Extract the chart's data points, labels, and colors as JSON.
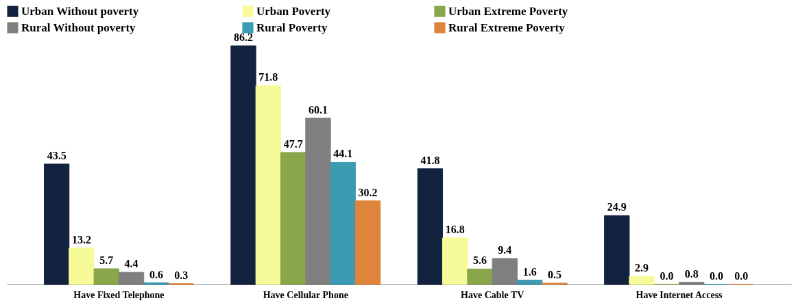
{
  "chart_data": {
    "type": "bar",
    "categories": [
      "Have Fixed Telephone",
      "Have Cellular Phone",
      "Have Cable TV",
      "Have Internet Access"
    ],
    "series": [
      {
        "name": "Urban Without poverty",
        "color": "#13233f",
        "values": [
          43.5,
          86.2,
          41.8,
          24.9
        ],
        "value_labels": [
          "43.5",
          "86.2",
          "41.8",
          "24.9"
        ]
      },
      {
        "name": "Urban Poverty",
        "color": "#f6fa98",
        "values": [
          13.2,
          71.8,
          16.8,
          2.9
        ],
        "value_labels": [
          "13.2",
          "71.8",
          "16.8",
          "2.9"
        ]
      },
      {
        "name": "Urban Extreme Poverty",
        "color": "#8aa64b",
        "values": [
          5.7,
          47.7,
          5.6,
          0
        ],
        "value_labels": [
          "5.7",
          "47.7",
          "5.6",
          "0.0"
        ]
      },
      {
        "name": "Rural Without poverty",
        "color": "#7f7f7f",
        "values": [
          4.4,
          60.1,
          9.4,
          0.8
        ],
        "value_labels": [
          "4.4",
          "60.1",
          "9.4",
          "0.8"
        ]
      },
      {
        "name": "Rural Poverty",
        "color": "#3d9ab3",
        "values": [
          0.6,
          44.1,
          1.6,
          0
        ],
        "value_labels": [
          "0.6",
          "44.1",
          "1.6",
          "0.0"
        ]
      },
      {
        "name": "Rural Extreme Poverty",
        "color": "#e0843b",
        "values": [
          0.3,
          30.2,
          0.5,
          0
        ],
        "value_labels": [
          "0.3",
          "30.2",
          "0.5",
          "0.0"
        ]
      }
    ],
    "legend": "top",
    "grid": false
  }
}
